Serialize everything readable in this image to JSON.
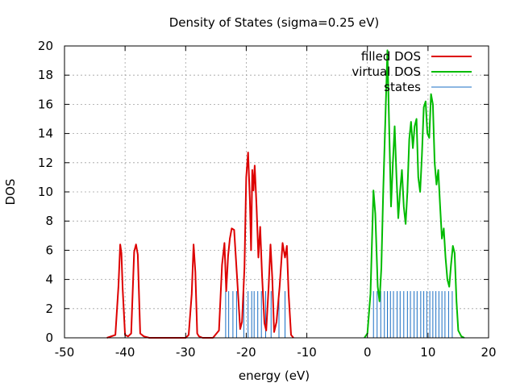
{
  "chart_data": {
    "type": "line",
    "title": "Density of States (sigma=0.25 eV)",
    "xlabel": "energy (eV)",
    "ylabel": "DOS",
    "xlim": [
      -50,
      20
    ],
    "ylim": [
      0,
      20
    ],
    "xticks": [
      -50,
      -40,
      -30,
      -20,
      -10,
      0,
      10,
      20
    ],
    "yticks": [
      0,
      2,
      4,
      6,
      8,
      10,
      12,
      14,
      16,
      18,
      20
    ],
    "grid": true,
    "legend_position": "top-right",
    "colors": {
      "filled": "#dd0000",
      "virtual": "#00bb00",
      "states": "#1a6fc4"
    },
    "series": [
      {
        "name": "filled DOS",
        "color": "#dd0000",
        "x": [
          -43.0,
          -41.6,
          -41.1,
          -40.8,
          -40.6,
          -40.4,
          -40.0,
          -39.5,
          -39.0,
          -38.5,
          -38.2,
          -37.9,
          -37.5,
          -36.9,
          -36.0,
          -30.0,
          -29.5,
          -29.0,
          -28.7,
          -28.4,
          -28.1,
          -27.8,
          -27.2,
          -25.5,
          -24.5,
          -24.0,
          -23.6,
          -23.3,
          -23.0,
          -22.7,
          -22.4,
          -22.0,
          -21.5,
          -21.0,
          -20.7,
          -20.3,
          -20.0,
          -19.7,
          -19.4,
          -19.2,
          -19.0,
          -18.8,
          -18.6,
          -18.3,
          -18.0,
          -17.7,
          -17.4,
          -17.0,
          -16.7,
          -16.3,
          -16.0,
          -15.7,
          -15.4,
          -15.0,
          -14.5,
          -14.0,
          -13.6,
          -13.3,
          -13.0,
          -12.6,
          -12.2
        ],
        "y": [
          0,
          0.2,
          3.5,
          6.4,
          5.8,
          3.4,
          0.2,
          0.1,
          0.3,
          5.9,
          6.4,
          5.7,
          0.3,
          0.1,
          0,
          0,
          0.2,
          3.0,
          6.4,
          4.5,
          0.3,
          0.1,
          0,
          0,
          0.5,
          5.0,
          6.5,
          3.2,
          5.6,
          6.8,
          7.5,
          7.4,
          4.0,
          0.6,
          1.1,
          4.8,
          11.0,
          12.7,
          9.5,
          6.0,
          11.5,
          10.1,
          11.8,
          9.0,
          5.5,
          7.6,
          4.3,
          1.0,
          0.5,
          3.5,
          6.4,
          4.1,
          0.4,
          1.1,
          3.5,
          6.5,
          5.5,
          6.3,
          3.0,
          0.2,
          0
        ]
      },
      {
        "name": "virtual DOS",
        "color": "#00bb00",
        "x": [
          -0.5,
          0.0,
          0.5,
          1.0,
          1.3,
          1.7,
          2.0,
          2.3,
          2.6,
          3.0,
          3.3,
          3.6,
          3.9,
          4.2,
          4.5,
          4.8,
          5.1,
          5.4,
          5.7,
          6.0,
          6.3,
          6.6,
          6.9,
          7.2,
          7.5,
          7.8,
          8.1,
          8.4,
          8.7,
          9.0,
          9.3,
          9.6,
          9.9,
          10.2,
          10.5,
          10.8,
          11.1,
          11.4,
          11.7,
          12.0,
          12.3,
          12.6,
          12.9,
          13.2,
          13.5,
          13.8,
          14.1,
          14.4,
          14.7,
          15.0,
          15.5,
          16.0
        ],
        "y": [
          0,
          0.3,
          3.0,
          10.1,
          8.5,
          3.5,
          2.5,
          4.8,
          10.0,
          15.6,
          19.7,
          14.2,
          9.0,
          12.0,
          14.5,
          11.0,
          8.2,
          10.1,
          11.5,
          9.0,
          7.8,
          10.0,
          13.6,
          14.8,
          13.0,
          14.5,
          15.0,
          11.0,
          10.0,
          12.5,
          15.8,
          16.2,
          14.0,
          13.7,
          16.7,
          16.0,
          12.0,
          10.5,
          11.5,
          9.0,
          6.8,
          7.5,
          5.5,
          4.0,
          3.5,
          5.0,
          6.3,
          5.8,
          2.5,
          0.5,
          0.1,
          0
        ]
      },
      {
        "name": "states",
        "color": "#1a6fc4",
        "height": 3.2,
        "x": [
          -23.4,
          -22.9,
          -22.2,
          -21.6,
          -20.4,
          -19.7,
          -19.1,
          -18.7,
          -18.1,
          -17.5,
          -16.8,
          -15.9,
          -14.6,
          -13.6,
          1.0,
          1.6,
          2.2,
          2.8,
          3.3,
          3.8,
          4.3,
          4.9,
          5.4,
          6.0,
          6.6,
          7.1,
          7.7,
          8.2,
          8.8,
          9.3,
          9.8,
          10.3,
          10.8,
          11.3,
          11.8,
          12.3,
          12.8,
          13.4,
          14.0
        ]
      }
    ]
  }
}
